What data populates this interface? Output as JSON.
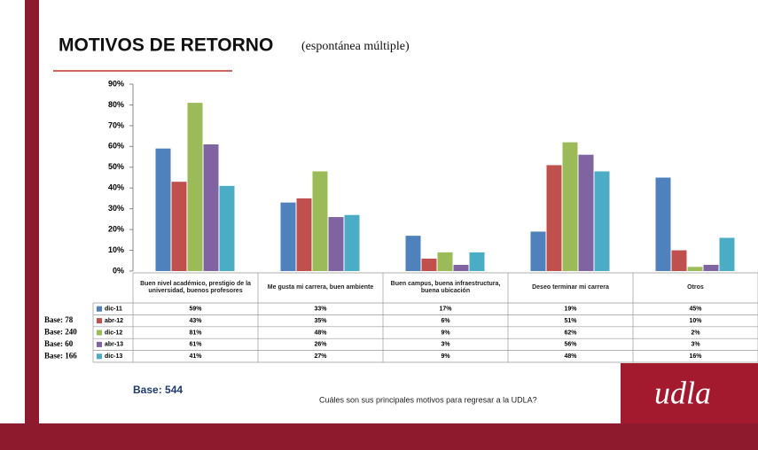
{
  "chart_data": {
    "type": "bar",
    "title": "MOTIVOS DE RETORNO",
    "subtitle": "(espontánea múltiple)",
    "categories": [
      "Buen nivel académico, prestigio de la universidad, buenos profesores",
      "Me gusta mi carrera, buen ambiente",
      "Buen campus, buena infraestructura, buena ubicación",
      "Deseo terminar mi carrera",
      "Otros"
    ],
    "series": [
      {
        "name": "dic-11",
        "color": "#4f81bd",
        "values": [
          59,
          33,
          17,
          19,
          45
        ],
        "value_labels": [
          "59%",
          "33%",
          "17%",
          "19%",
          "45%"
        ]
      },
      {
        "name": "abr-12",
        "color": "#c0504d",
        "values": [
          43,
          35,
          6,
          51,
          10
        ],
        "value_labels": [
          "43%",
          "35%",
          "6%",
          "51%",
          "10%"
        ]
      },
      {
        "name": "dic-12",
        "color": "#9bbb59",
        "values": [
          81,
          48,
          9,
          62,
          2
        ],
        "value_labels": [
          "81%",
          "48%",
          "9%",
          "62%",
          "2%"
        ]
      },
      {
        "name": "abr-13",
        "color": "#8064a2",
        "values": [
          61,
          26,
          3,
          56,
          3
        ],
        "value_labels": [
          "61%",
          "26%",
          "3%",
          "56%",
          "3%"
        ]
      },
      {
        "name": "dic-13",
        "color": "#4bacc6",
        "values": [
          41,
          27,
          9,
          48,
          16
        ],
        "value_labels": [
          "41%",
          "27%",
          "9%",
          "48%",
          "16%"
        ]
      }
    ],
    "ylim": [
      0,
      90
    ],
    "yticks": [
      {
        "value": 0,
        "label": "0%"
      },
      {
        "value": 10,
        "label": "10%"
      },
      {
        "value": 20,
        "label": "20%"
      },
      {
        "value": 30,
        "label": "30%"
      },
      {
        "value": 40,
        "label": "40%"
      },
      {
        "value": 50,
        "label": "50%"
      },
      {
        "value": 60,
        "label": "60%"
      },
      {
        "value": 70,
        "label": "70%"
      },
      {
        "value": 80,
        "label": "80%"
      },
      {
        "value": 90,
        "label": "90%"
      }
    ],
    "grid": false,
    "base_labels": [
      "Base: 78",
      "Base: 240",
      "Base: 60",
      "Base: 166"
    ],
    "base_total": "Base: 544",
    "question": "Cuáles son sus principales motivos para regresar a la UDLA?",
    "logo": "udla"
  }
}
